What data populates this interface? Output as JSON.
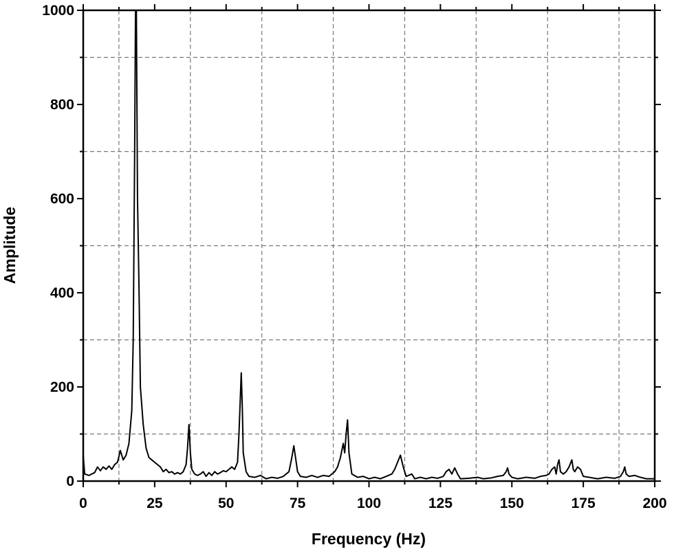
{
  "chart_data": {
    "type": "line",
    "x_label": "Frequency (Hz)",
    "y_label": "Amplitude",
    "xlim": [
      0,
      200
    ],
    "ylim": [
      0,
      1000
    ],
    "xticks": [
      0,
      25,
      50,
      75,
      100,
      125,
      150,
      175,
      200
    ],
    "yticks": [
      0,
      200,
      400,
      600,
      800,
      1000
    ],
    "xminor": [
      12.5,
      37.5,
      62.5,
      87.5,
      112.5,
      137.5,
      162.5,
      187.5
    ],
    "yminor": [
      100,
      300,
      500,
      700,
      900
    ],
    "grid": true,
    "series": [
      {
        "name": null,
        "color": "#000000",
        "x": [
          0,
          0.5,
          2,
          4,
          5,
          6,
          7,
          8,
          9,
          10,
          11,
          12,
          13,
          14,
          15,
          16,
          17,
          17.5,
          18,
          18.3,
          18.6,
          19,
          19.5,
          20,
          21,
          22,
          23,
          24,
          25,
          26,
          27,
          28,
          29,
          30,
          31,
          32,
          33,
          34,
          35,
          36,
          36.5,
          37,
          37.5,
          38,
          39,
          40,
          41,
          42,
          43,
          44,
          45,
          46,
          47,
          48,
          49,
          50,
          51,
          52,
          53,
          54,
          54.5,
          55,
          55.3,
          55.7,
          56,
          57,
          58,
          60,
          62,
          64,
          66,
          68,
          70,
          72,
          73,
          73.7,
          74.3,
          75,
          76,
          78,
          80,
          82,
          84,
          86,
          88,
          89,
          90,
          91,
          91.5,
          92,
          92.5,
          93,
          94,
          96,
          98,
          100,
          102,
          104,
          106,
          108,
          109,
          110,
          111,
          112,
          113,
          115,
          116,
          118,
          120,
          122,
          124,
          126,
          127,
          128,
          129,
          130,
          131,
          132,
          135,
          138,
          140,
          143,
          145,
          147,
          148,
          148.5,
          149,
          150,
          152,
          155,
          158,
          160,
          162,
          163,
          164,
          165,
          165.5,
          166,
          166.5,
          167,
          168,
          169,
          170,
          171,
          171.5,
          172,
          173,
          174,
          175,
          177,
          180,
          183,
          186,
          188,
          189,
          189.5,
          190,
          191,
          193,
          195,
          197,
          200
        ],
        "values": [
          55,
          15,
          12,
          18,
          30,
          22,
          30,
          25,
          32,
          25,
          35,
          40,
          65,
          45,
          55,
          80,
          150,
          300,
          700,
          1000,
          1000,
          600,
          420,
          200,
          120,
          70,
          50,
          45,
          40,
          35,
          30,
          20,
          25,
          18,
          20,
          15,
          18,
          15,
          20,
          35,
          70,
          120,
          60,
          25,
          15,
          12,
          15,
          20,
          10,
          18,
          12,
          20,
          15,
          18,
          22,
          20,
          25,
          30,
          25,
          40,
          100,
          180,
          230,
          150,
          60,
          20,
          10,
          8,
          12,
          5,
          8,
          6,
          10,
          20,
          50,
          75,
          50,
          20,
          10,
          8,
          12,
          8,
          12,
          10,
          20,
          30,
          50,
          80,
          60,
          100,
          130,
          60,
          15,
          8,
          10,
          5,
          8,
          5,
          10,
          15,
          25,
          40,
          55,
          30,
          10,
          15,
          5,
          8,
          5,
          8,
          6,
          10,
          20,
          25,
          15,
          28,
          15,
          5,
          6,
          8,
          5,
          7,
          10,
          12,
          20,
          28,
          15,
          8,
          5,
          8,
          6,
          10,
          12,
          15,
          25,
          30,
          15,
          35,
          45,
          20,
          15,
          20,
          30,
          45,
          25,
          20,
          30,
          25,
          10,
          8,
          5,
          8,
          6,
          10,
          20,
          30,
          15,
          10,
          12,
          8,
          5,
          5
        ]
      }
    ]
  }
}
